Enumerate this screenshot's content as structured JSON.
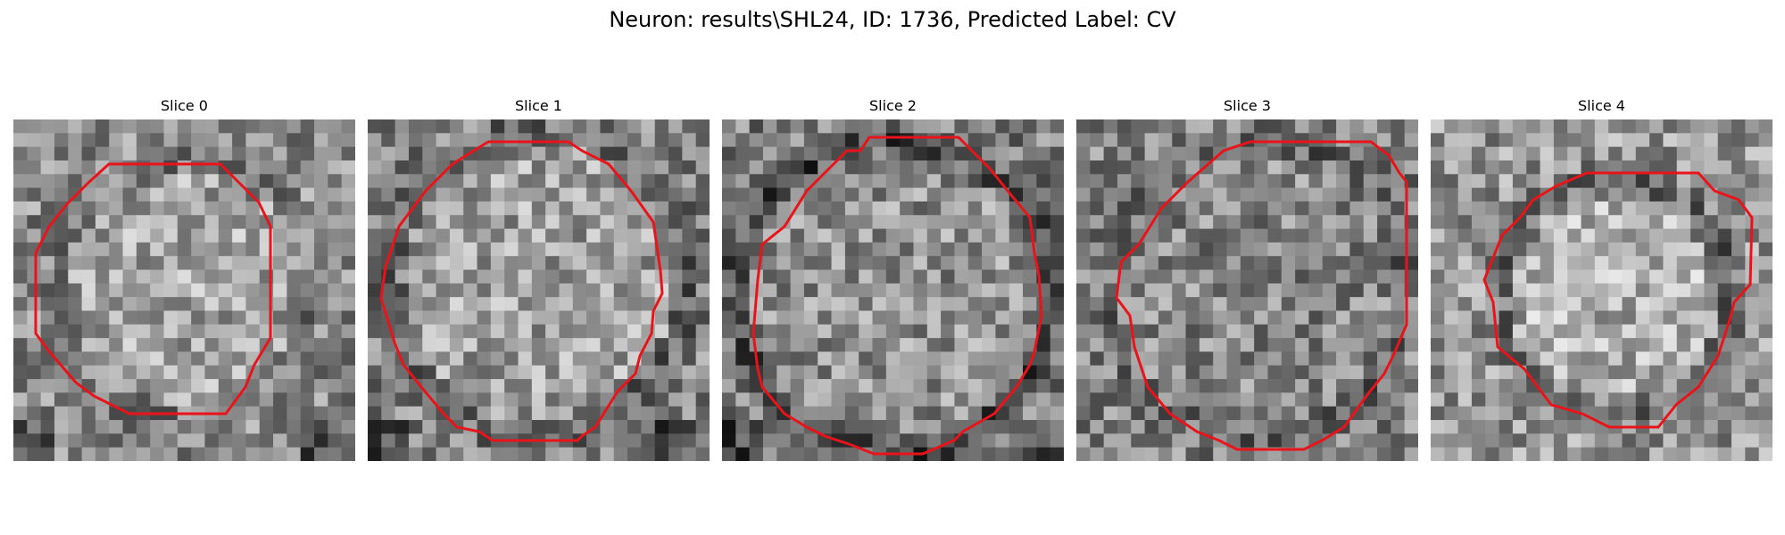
{
  "figure": {
    "title": "Neuron: results\\SHL24, ID: 1736, Predicted Label: CV"
  },
  "panels": [
    {
      "title": "Slice 0"
    },
    {
      "title": "Slice 1"
    },
    {
      "title": "Slice 2"
    },
    {
      "title": "Slice 3"
    },
    {
      "title": "Slice 4"
    }
  ],
  "colors": {
    "contour": "#e8141a",
    "background": "#ffffff"
  }
}
